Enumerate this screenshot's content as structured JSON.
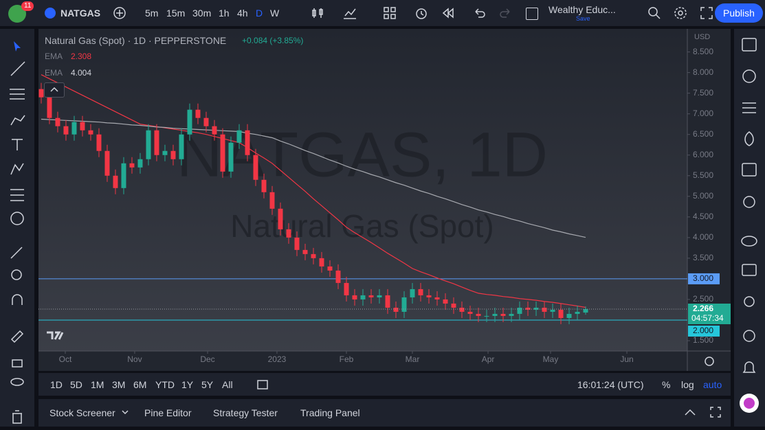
{
  "toolbar": {
    "badge": "11",
    "symbol": "NATGAS",
    "intervals": [
      "5m",
      "15m",
      "30m",
      "1h",
      "4h",
      "D",
      "W"
    ],
    "active_interval": "D",
    "layout_name": "Wealthy Educ...",
    "layout_status": "Save",
    "publish": "Publish"
  },
  "chart_data": {
    "type": "candlestick",
    "title": "Natural Gas (Spot) · 1D · PEPPERSTONE",
    "change": "+0.084 (+3.85%)",
    "watermark": "NATGAS, 1D",
    "watermark_subtitle": "Natural Gas (Spot)",
    "currency": "USD",
    "countdown": "04:57:34",
    "up_color": "#22ab94",
    "down_color": "#f23645",
    "categories": [
      null,
      null,
      null,
      null,
      null,
      null,
      null,
      null,
      null,
      null,
      null,
      null,
      null,
      null,
      null,
      null,
      null,
      null,
      null,
      null,
      null,
      null,
      null,
      null,
      null,
      null,
      null,
      null,
      null,
      null,
      null,
      null,
      null,
      null,
      null,
      null,
      null,
      null,
      null,
      null,
      null,
      null,
      null,
      null,
      null,
      null,
      null,
      null,
      null,
      null,
      null,
      null,
      null,
      null,
      null,
      null,
      null,
      null,
      null,
      null,
      null,
      null,
      null,
      null,
      null,
      null,
      null
    ],
    "open": [
      7.6,
      7.4,
      6.9,
      6.7,
      6.5,
      6.8,
      6.6,
      6.5,
      6.1,
      5.5,
      5.2,
      5.8,
      5.7,
      5.9,
      6.6,
      6.0,
      6.1,
      5.9,
      6.5,
      7.1,
      6.9,
      6.7,
      6.5,
      5.6,
      6.3,
      6.6,
      6.0,
      5.4,
      5.1,
      4.7,
      4.2,
      4.0,
      3.7,
      3.6,
      3.5,
      3.3,
      3.2,
      2.9,
      2.6,
      2.5,
      2.6,
      2.55,
      2.6,
      2.3,
      2.2,
      2.55,
      2.75,
      2.6,
      2.55,
      2.5,
      2.4,
      2.3,
      2.2,
      2.15,
      2.1,
      2.1,
      2.15,
      2.1,
      2.15,
      2.3,
      2.25,
      2.3,
      2.2,
      2.25,
      2.05,
      2.15,
      2.182
    ],
    "high": [
      7.75,
      7.55,
      7.05,
      6.85,
      6.95,
      6.95,
      6.75,
      6.65,
      6.25,
      5.65,
      5.95,
      5.95,
      6.05,
      6.75,
      6.75,
      6.25,
      6.25,
      6.65,
      7.25,
      7.25,
      7.05,
      6.85,
      6.65,
      6.45,
      6.75,
      6.75,
      6.15,
      5.55,
      5.25,
      4.85,
      4.35,
      4.15,
      3.85,
      3.75,
      3.65,
      3.45,
      3.35,
      3.05,
      2.75,
      2.75,
      2.75,
      2.75,
      2.75,
      2.45,
      2.7,
      2.9,
      2.9,
      2.75,
      2.7,
      2.65,
      2.55,
      2.45,
      2.35,
      2.3,
      2.25,
      2.3,
      2.3,
      2.3,
      2.45,
      2.45,
      2.45,
      2.45,
      2.4,
      2.4,
      2.3,
      2.35,
      2.33
    ],
    "low": [
      7.25,
      6.75,
      6.55,
      6.35,
      6.35,
      6.45,
      6.35,
      5.95,
      5.35,
      5.05,
      5.05,
      5.55,
      5.55,
      5.75,
      5.85,
      5.85,
      5.75,
      5.75,
      6.35,
      6.75,
      6.55,
      6.35,
      5.45,
      5.45,
      6.15,
      5.85,
      5.25,
      4.95,
      4.55,
      4.05,
      3.85,
      3.55,
      3.45,
      3.35,
      3.15,
      3.05,
      2.75,
      2.45,
      2.35,
      2.35,
      2.4,
      2.4,
      2.15,
      2.05,
      2.05,
      2.4,
      2.45,
      2.4,
      2.35,
      2.25,
      2.15,
      2.05,
      2.0,
      1.95,
      1.95,
      1.95,
      1.95,
      1.95,
      2.0,
      2.1,
      2.1,
      2.05,
      2.05,
      1.9,
      1.9,
      2.0,
      2.13
    ],
    "close": [
      7.4,
      6.9,
      6.7,
      6.5,
      6.8,
      6.6,
      6.5,
      6.1,
      5.5,
      5.2,
      5.8,
      5.7,
      5.9,
      6.6,
      6.0,
      6.1,
      5.9,
      6.5,
      7.1,
      6.9,
      6.7,
      6.5,
      5.6,
      6.3,
      6.6,
      6.0,
      5.4,
      5.1,
      4.7,
      4.2,
      4.0,
      3.7,
      3.6,
      3.5,
      3.3,
      3.2,
      2.9,
      2.6,
      2.5,
      2.6,
      2.55,
      2.6,
      2.3,
      2.2,
      2.55,
      2.75,
      2.6,
      2.55,
      2.5,
      2.4,
      2.3,
      2.2,
      2.15,
      2.1,
      2.1,
      2.15,
      2.1,
      2.15,
      2.3,
      2.25,
      2.3,
      2.2,
      2.25,
      2.05,
      2.15,
      2.2,
      2.266
    ],
    "series": [
      {
        "name": "EMA",
        "color": "#f23645",
        "values": [
          7.95,
          7.85,
          7.75,
          7.65,
          7.55,
          7.45,
          7.35,
          7.25,
          7.15,
          7.05,
          6.95,
          6.85,
          6.75,
          6.72,
          6.69,
          6.66,
          6.63,
          6.6,
          6.57,
          6.54,
          6.5,
          6.45,
          6.4,
          6.35,
          6.3,
          6.18,
          6.05,
          5.93,
          5.8,
          5.63,
          5.46,
          5.29,
          5.12,
          4.94,
          4.77,
          4.6,
          4.43,
          4.25,
          4.12,
          4.0,
          3.88,
          3.75,
          3.62,
          3.5,
          3.38,
          3.25,
          3.17,
          3.1,
          3.02,
          2.95,
          2.88,
          2.8,
          2.72,
          2.65,
          2.62,
          2.6,
          2.57,
          2.55,
          2.52,
          2.5,
          2.48,
          2.45,
          2.43,
          2.4,
          2.37,
          2.34,
          2.308
        ]
      },
      {
        "name": "EMA",
        "color": "#a8aab0",
        "values": [
          6.87,
          6.86,
          6.85,
          6.84,
          6.83,
          6.82,
          6.81,
          6.8,
          6.78,
          6.77,
          6.75,
          6.73,
          6.72,
          6.7,
          6.68,
          6.67,
          6.65,
          6.64,
          6.63,
          6.62,
          6.61,
          6.6,
          6.59,
          6.58,
          6.57,
          6.53,
          6.5,
          6.46,
          6.42,
          6.34,
          6.27,
          6.19,
          6.11,
          6.04,
          5.96,
          5.88,
          5.81,
          5.73,
          5.66,
          5.6,
          5.53,
          5.47,
          5.4,
          5.33,
          5.27,
          5.2,
          5.13,
          5.07,
          5.0,
          4.94,
          4.87,
          4.8,
          4.74,
          4.67,
          4.62,
          4.56,
          4.51,
          4.45,
          4.4,
          4.34,
          4.29,
          4.24,
          4.18,
          4.14,
          4.09,
          4.05,
          4.004
        ]
      }
    ],
    "xlim": [
      -0.33,
      78.33
    ],
    "xticks": [
      {
        "value": 2.92,
        "label": "Oct"
      },
      {
        "value": 11.33,
        "label": "Nov"
      },
      {
        "value": 20.17,
        "label": "Dec"
      },
      {
        "value": 28.58,
        "label": "2023"
      },
      {
        "value": 37,
        "label": "Feb"
      },
      {
        "value": 45,
        "label": "Mar"
      },
      {
        "value": 54.17,
        "label": "Apr"
      },
      {
        "value": 61.75,
        "label": "May"
      },
      {
        "value": 71,
        "label": "Jun"
      }
    ],
    "ylim": [
      1.25,
      9.06
    ],
    "yticks": [
      {
        "value": 8.5,
        "label": "8.500"
      },
      {
        "value": 8,
        "label": "8.000"
      },
      {
        "value": 7.5,
        "label": "7.500"
      },
      {
        "value": 7,
        "label": "7.000"
      },
      {
        "value": 6.5,
        "label": "6.500"
      },
      {
        "value": 6,
        "label": "6.000"
      },
      {
        "value": 5.5,
        "label": "5.500"
      },
      {
        "value": 5,
        "label": "5.000"
      },
      {
        "value": 4.5,
        "label": "4.500"
      },
      {
        "value": 4,
        "label": "4.000"
      },
      {
        "value": 3.5,
        "label": "3.500"
      },
      {
        "value": 2.5,
        "label": "2.500"
      },
      {
        "value": 1.5,
        "label": "1.500"
      }
    ],
    "hlines": [
      {
        "value": 3,
        "label": "3.000",
        "color": "#5b9cf6"
      },
      {
        "value": 2,
        "label": "2.000",
        "color": "#26c6da"
      }
    ]
  },
  "range_bar": {
    "ranges": [
      "1D",
      "5D",
      "1M",
      "3M",
      "6M",
      "YTD",
      "1Y",
      "5Y",
      "All"
    ],
    "clock": "16:01:24 (UTC)",
    "percent": "%",
    "log": "log",
    "auto": "auto"
  },
  "bottom_tabs": [
    "Stock Screener",
    "Pine Editor",
    "Strategy Tester",
    "Trading Panel"
  ]
}
